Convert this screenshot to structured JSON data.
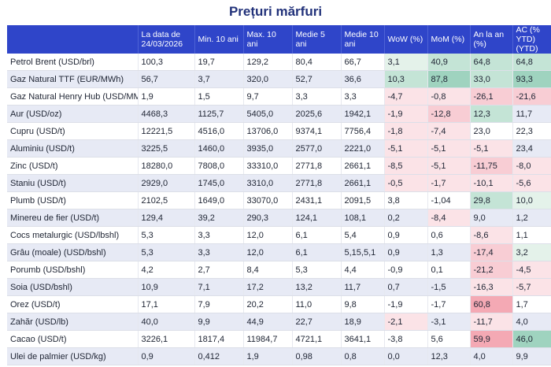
{
  "title": "Prețuri mărfuri",
  "headers": [
    "La data de 24/03/2026",
    "Min. 10 ani",
    "Max. 10 ani",
    "Medie 5 ani",
    "Medie 10 ani",
    "WoW (%)",
    "MoM (%)",
    "An la an (%)",
    "AC (% YTD) (YTD)"
  ],
  "rows": [
    {
      "name": "Petrol Brent (USD/brl)",
      "vals": [
        "100,3",
        "19,7",
        "129,2",
        "80,4",
        "66,7",
        "3,1",
        "40,9",
        "64,8",
        "64,8"
      ],
      "tone": [
        "",
        "",
        "",
        "",
        "",
        "pos-lo",
        "pos-md",
        "pos-md",
        "pos-md"
      ]
    },
    {
      "name": "Gaz Natural TTF (EUR/MWh)",
      "vals": [
        "56,7",
        "3,7",
        "320,0",
        "52,7",
        "36,6",
        "10,3",
        "87,8",
        "33,0",
        "93,3"
      ],
      "tone": [
        "",
        "",
        "",
        "",
        "",
        "pos-md",
        "pos-hi",
        "pos-md",
        "pos-hi"
      ]
    },
    {
      "name": "Gaz Natural Henry Hub (USD/MMBtu)",
      "vals": [
        "1,9",
        "1,5",
        "9,7",
        "3,3",
        "3,3",
        "-4,7",
        "-0,8",
        "-26,1",
        "-21,6"
      ],
      "tone": [
        "",
        "",
        "",
        "",
        "",
        "neg-lo",
        "neg-lo",
        "neg-md",
        "neg-md"
      ]
    },
    {
      "name": "Aur (USD/oz)",
      "vals": [
        "4468,3",
        "1125,7",
        "5405,0",
        "2025,6",
        "1942,1",
        "-1,9",
        "-12,8",
        "12,3",
        "11,7"
      ],
      "tone": [
        "",
        "",
        "",
        "",
        "",
        "neg-lo",
        "neg-md",
        "pos-md",
        ""
      ]
    },
    {
      "name": "Cupru (USD/t)",
      "vals": [
        "12221,5",
        "4516,0",
        "13706,0",
        "9374,1",
        "7756,4",
        "-1,8",
        "-7,4",
        "23,0",
        "22,3"
      ],
      "tone": [
        "",
        "",
        "",
        "",
        "",
        "neg-lo",
        "neg-lo",
        "",
        ""
      ]
    },
    {
      "name": "Aluminiu (USD/t)",
      "vals": [
        "3225,5",
        "1460,0",
        "3935,0",
        "2577,0",
        "2221,0",
        "-5,1",
        "-5,1",
        "-5,1",
        "23,4"
      ],
      "tone": [
        "",
        "",
        "",
        "",
        "",
        "neg-lo",
        "neg-lo",
        "neg-lo",
        ""
      ]
    },
    {
      "name": "Zinc (USD/t)",
      "vals": [
        "18280,0",
        "7808,0",
        "33310,0",
        "2771,8",
        "2661,1",
        "-8,5",
        "-5,1",
        "-11,75",
        "-8,0"
      ],
      "tone": [
        "",
        "",
        "",
        "",
        "",
        "neg-lo",
        "neg-lo",
        "neg-md",
        "neg-lo"
      ]
    },
    {
      "name": "Staniu (USD/t)",
      "vals": [
        "2929,0",
        "1745,0",
        "3310,0",
        "2771,8",
        "2661,1",
        "-0,5",
        "-1,7",
        "-10,1",
        "-5,6"
      ],
      "tone": [
        "",
        "",
        "",
        "",
        "",
        "neg-lo",
        "neg-lo",
        "neg-lo",
        "neg-lo"
      ]
    },
    {
      "name": "Plumb (USD/t)",
      "vals": [
        "2102,5",
        "1649,0",
        "33070,0",
        "2431,1",
        "2091,5",
        "3,8",
        "-1,04",
        "29,8",
        "10,0"
      ],
      "tone": [
        "",
        "",
        "",
        "",
        "",
        "",
        "",
        "pos-md",
        "pos-lo"
      ]
    },
    {
      "name": "Minereu de fier (USD/t)",
      "vals": [
        "129,4",
        "39,2",
        "290,3",
        "124,1",
        "108,1",
        "0,2",
        "-8,4",
        "9,0",
        "1,2"
      ],
      "tone": [
        "",
        "",
        "",
        "",
        "",
        "",
        "neg-lo",
        "",
        ""
      ]
    },
    {
      "name": "Cocs metalurgic (USD/lbshl)",
      "vals": [
        "5,3",
        "3,3",
        "12,0",
        "6,1",
        "5,4",
        "0,9",
        "0,6",
        "-8,6",
        "1,1"
      ],
      "tone": [
        "",
        "",
        "",
        "",
        "",
        "",
        "",
        "neg-lo",
        ""
      ]
    },
    {
      "name": "Grâu (moale) (USD/bshl)",
      "vals": [
        "5,3",
        "3,3",
        "12,0",
        "6,1",
        "5,15,5,1",
        "0,9",
        "1,3",
        "-17,4",
        "3,2"
      ],
      "tone": [
        "",
        "",
        "",
        "",
        "",
        "",
        "",
        "neg-md",
        "pos-lo"
      ]
    },
    {
      "name": "Porumb (USD/bshl)",
      "vals": [
        "4,2",
        "2,7",
        "8,4",
        "5,3",
        "4,4",
        "-0,9",
        "0,1",
        "-21,2",
        "-4,5"
      ],
      "tone": [
        "",
        "",
        "",
        "",
        "",
        "",
        "",
        "neg-md",
        "neg-lo"
      ]
    },
    {
      "name": "Soia (USD/bshl)",
      "vals": [
        "10,9",
        "7,1",
        "17,2",
        "13,2",
        "11,7",
        "0,7",
        "-1,5",
        "-16,3",
        "-5,7"
      ],
      "tone": [
        "",
        "",
        "",
        "",
        "",
        "",
        "",
        "neg-lo",
        "neg-lo"
      ]
    },
    {
      "name": "Orez (USD/t)",
      "vals": [
        "17,1",
        "7,9",
        "20,2",
        "11,0",
        "9,8",
        "-1,9",
        "-1,7",
        "60,8",
        "1,7"
      ],
      "tone": [
        "",
        "",
        "",
        "",
        "",
        "",
        "",
        "neg-hi",
        ""
      ]
    },
    {
      "name": "Zahăr (USD/lb)",
      "vals": [
        "40,0",
        "9,9",
        "44,9",
        "22,7",
        "18,9",
        "-2,1",
        "-3,1",
        "-11,7",
        "4,0"
      ],
      "tone": [
        "",
        "",
        "",
        "",
        "",
        "neg-lo",
        "",
        "neg-lo",
        ""
      ]
    },
    {
      "name": "Cacao (USD/t)",
      "vals": [
        "3226,1",
        "1817,4",
        "11984,7",
        "4721,1",
        "3641,1",
        "-3,8",
        "5,6",
        "59,9",
        "46,0"
      ],
      "tone": [
        "",
        "",
        "",
        "",
        "",
        "",
        "",
        "neg-hi",
        "pos-hi"
      ]
    },
    {
      "name": "Ulei de palmier (USD/kg)",
      "vals": [
        "0,9",
        "0,412",
        "1,9",
        "0,98",
        "0,8",
        "0,0",
        "12,3",
        "4,0",
        "9,9"
      ],
      "tone": [
        "",
        "",
        "",
        "",
        "",
        "",
        "",
        "",
        ""
      ]
    }
  ]
}
